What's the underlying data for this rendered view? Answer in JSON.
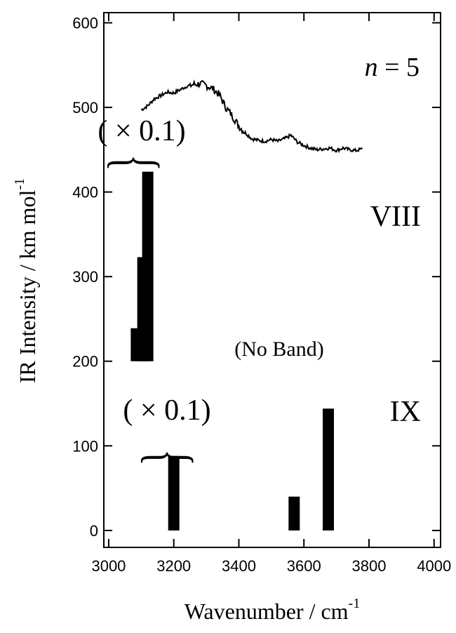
{
  "chart_data": {
    "type": "bar",
    "xlabel": "Wavenumber / cm",
    "xlabel_sup": "-1",
    "ylabel": "IR Intensity / km mol",
    "ylabel_sup": "-1",
    "xlim": [
      2985,
      4020
    ],
    "ylim": [
      -20,
      612
    ],
    "xticks": [
      3000,
      3200,
      3400,
      3600,
      3800,
      4000
    ],
    "yticks": [
      0,
      100,
      200,
      300,
      400,
      500,
      600
    ],
    "x_tick_labels": [
      "3000",
      "3200",
      "3400",
      "3600",
      "3800",
      "4000"
    ],
    "y_tick_labels": [
      "0",
      "100",
      "200",
      "300",
      "400",
      "500",
      "600"
    ],
    "grid": false,
    "panel_label": {
      "italic": "n",
      "rest": " = 5"
    },
    "experimental_spectrum": {
      "x": [
        3100,
        3120,
        3140,
        3160,
        3180,
        3200,
        3220,
        3240,
        3260,
        3280,
        3300,
        3320,
        3340,
        3360,
        3380,
        3400,
        3420,
        3440,
        3460,
        3480,
        3500,
        3520,
        3540,
        3560,
        3580,
        3600,
        3620,
        3640,
        3660,
        3680,
        3700,
        3720,
        3740,
        3760,
        3780
      ],
      "y": [
        497,
        502,
        510,
        514,
        518,
        517,
        521,
        525,
        527,
        528,
        526,
        522,
        515,
        500,
        490,
        478,
        470,
        463,
        461,
        460,
        462,
        460,
        463,
        467,
        459,
        455,
        452,
        450,
        451,
        452,
        449,
        452,
        450,
        449,
        451
      ]
    },
    "calculated_spectra": [
      {
        "name": "VIII",
        "baseline": 200,
        "scale_note": "( × 0.1)",
        "bars": [
          {
            "x": 3085,
            "value": 39
          },
          {
            "x": 3105,
            "value": 123
          },
          {
            "x": 3120,
            "value": 224
          }
        ],
        "empty_note": "(No Band)"
      },
      {
        "name": "IX",
        "baseline": 0,
        "scale_note": "( × 0.1)",
        "bars": [
          {
            "x": 3200,
            "value": 88
          },
          {
            "x": 3570,
            "value": 40
          },
          {
            "x": 3675,
            "value": 144
          }
        ]
      }
    ],
    "brace_symbol": "}"
  }
}
